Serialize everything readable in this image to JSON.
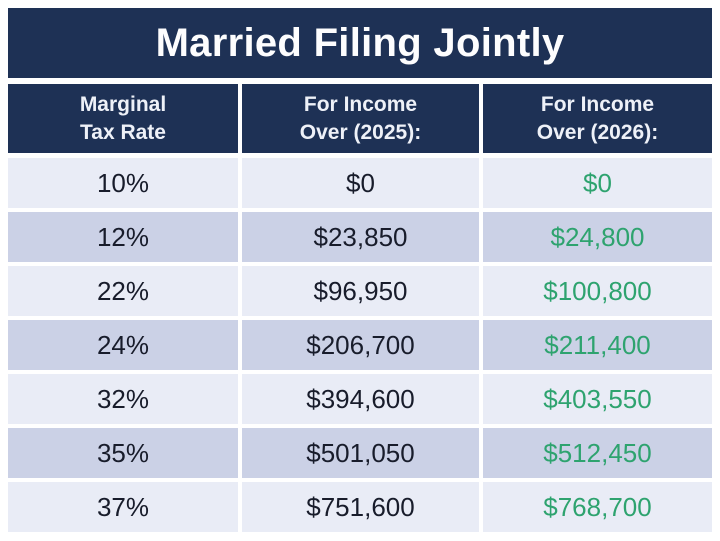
{
  "title": "Married Filing Jointly",
  "colors": {
    "navy": "#1e3155",
    "green": "#2ea36f",
    "row_light": "#e9ecf6",
    "row_dark": "#cbd1e6",
    "text_dark": "#181c2b",
    "header_text": "#eef1f8"
  },
  "table": {
    "columns": [
      {
        "line1": "Marginal",
        "line2": "Tax Rate"
      },
      {
        "line1": "For Income",
        "line2": "Over (2025):"
      },
      {
        "line1": "For Income",
        "line2": "Over (2026):"
      }
    ],
    "rows": [
      {
        "rate": "10%",
        "income_2025": "$0",
        "income_2026": "$0"
      },
      {
        "rate": "12%",
        "income_2025": "$23,850",
        "income_2026": "$24,800"
      },
      {
        "rate": "22%",
        "income_2025": "$96,950",
        "income_2026": "$100,800"
      },
      {
        "rate": "24%",
        "income_2025": "$206,700",
        "income_2026": "$211,400"
      },
      {
        "rate": "32%",
        "income_2025": "$394,600",
        "income_2026": "$403,550"
      },
      {
        "rate": "35%",
        "income_2025": "$501,050",
        "income_2026": "$512,450"
      },
      {
        "rate": "37%",
        "income_2025": "$751,600",
        "income_2026": "$768,700"
      }
    ]
  },
  "chart_data": {
    "type": "table",
    "title": "Married Filing Jointly",
    "columns": [
      "Marginal Tax Rate",
      "For Income Over (2025):",
      "For Income Over (2026):"
    ],
    "rows": [
      [
        "10%",
        "$0",
        "$0"
      ],
      [
        "12%",
        "$23,850",
        "$24,800"
      ],
      [
        "22%",
        "$96,950",
        "$100,800"
      ],
      [
        "24%",
        "$206,700",
        "$211,400"
      ],
      [
        "32%",
        "$394,600",
        "$403,550"
      ],
      [
        "35%",
        "$501,050",
        "$512,450"
      ],
      [
        "37%",
        "$751,600",
        "$768,700"
      ]
    ],
    "notes": "2026 column values rendered in green; rows alternate light/dark lavender stripes"
  }
}
